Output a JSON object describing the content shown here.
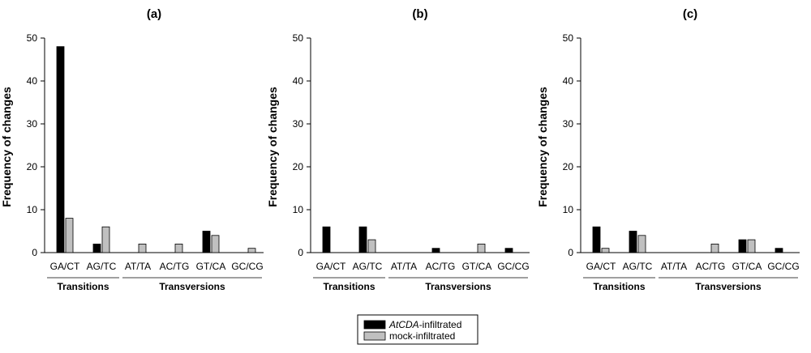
{
  "chart_data": [
    {
      "type": "bar",
      "title": "(a)",
      "ylabel": "Frequency of changes",
      "ylim": [
        0,
        50
      ],
      "yticks": [
        0,
        10,
        20,
        30,
        40,
        50
      ],
      "categories": [
        "GA/CT",
        "AG/TC",
        "AT/TA",
        "AC/TG",
        "GT/CA",
        "GC/CG"
      ],
      "groups": [
        {
          "label": "Transitions"
        },
        {
          "label": "Transversions"
        }
      ],
      "series": [
        {
          "name": "AtCDA-infiltrated",
          "values": [
            48,
            2,
            0,
            0,
            5,
            0
          ]
        },
        {
          "name": "mock-infiltrated",
          "values": [
            8,
            6,
            2,
            2,
            4,
            1
          ]
        }
      ]
    },
    {
      "type": "bar",
      "title": "(b)",
      "ylabel": "Frequency of changes",
      "ylim": [
        0,
        50
      ],
      "yticks": [
        0,
        10,
        20,
        30,
        40,
        50
      ],
      "categories": [
        "GA/CT",
        "AG/TC",
        "AT/TA",
        "AC/TG",
        "GT/CA",
        "GC/CG"
      ],
      "groups": [
        {
          "label": "Transitions"
        },
        {
          "label": "Transversions"
        }
      ],
      "series": [
        {
          "name": "AtCDA-infiltrated",
          "values": [
            6,
            6,
            0,
            1,
            0,
            1
          ]
        },
        {
          "name": "mock-infiltrated",
          "values": [
            0,
            3,
            0,
            0,
            2,
            0
          ]
        }
      ]
    },
    {
      "type": "bar",
      "title": "(c)",
      "ylabel": "Frequency of changes",
      "ylim": [
        0,
        50
      ],
      "yticks": [
        0,
        10,
        20,
        30,
        40,
        50
      ],
      "categories": [
        "GA/CT",
        "AG/TC",
        "AT/TA",
        "AC/TG",
        "GT/CA",
        "GC/CG"
      ],
      "groups": [
        {
          "label": "Transitions"
        },
        {
          "label": "Transversions"
        }
      ],
      "series": [
        {
          "name": "AtCDA-infiltrated",
          "values": [
            6,
            5,
            0,
            0,
            3,
            1
          ]
        },
        {
          "name": "mock-infiltrated",
          "values": [
            1,
            4,
            0,
            2,
            3,
            0
          ]
        }
      ]
    }
  ],
  "legend": {
    "placement": "bottom-center",
    "entries": [
      {
        "italic": "AtCDA",
        "text": "-infiltrated",
        "color": "#000000"
      },
      {
        "italic": "",
        "text": "mock-infiltrated",
        "color": "#c0c0c0"
      }
    ]
  },
  "colors": {
    "series": [
      "#000000",
      "#c0c0c0"
    ],
    "axis": "#000000"
  }
}
